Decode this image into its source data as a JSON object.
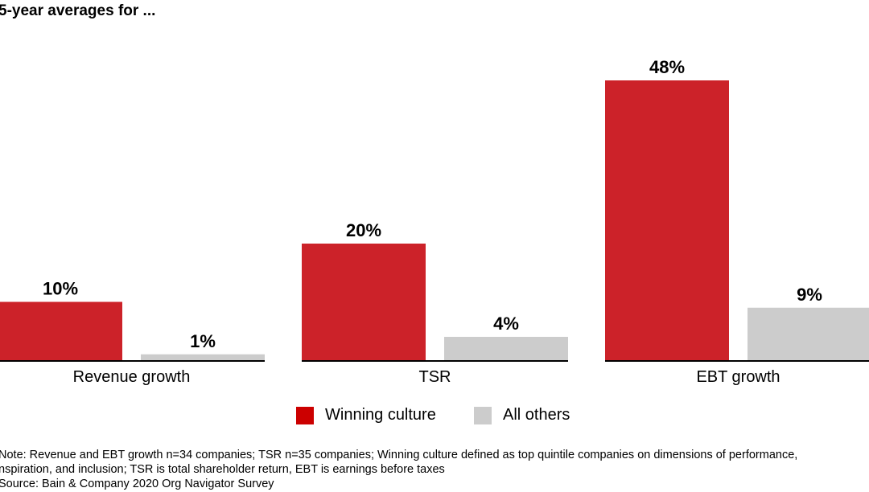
{
  "chart_data": {
    "type": "bar",
    "title": "5-year averages for ...",
    "categories": [
      "Revenue growth",
      "TSR",
      "EBT growth"
    ],
    "series": [
      {
        "name": "Winning culture",
        "values": [
          10,
          20,
          48
        ],
        "color": "#cc2229"
      },
      {
        "name": "All others",
        "values": [
          1,
          4,
          9
        ],
        "color": "#cccccc"
      }
    ],
    "data_labels": [
      [
        "10%",
        "20%",
        "48%"
      ],
      [
        "1%",
        "4%",
        "9%"
      ]
    ],
    "ylim": [
      0,
      48
    ],
    "grid": false,
    "legend": "bottom-center",
    "legend_colors": [
      "#cc0000",
      "#cccccc"
    ]
  },
  "notes": [
    "Note: Revenue and EBT growth n=34 companies; TSR n=35 companies; Winning culture defined as top quintile companies on dimensions of performance,",
    "nspiration, and inclusion; TSR is total shareholder return, EBT is earnings before taxes",
    "Source: Bain & Company 2020 Org Navigator Survey"
  ]
}
